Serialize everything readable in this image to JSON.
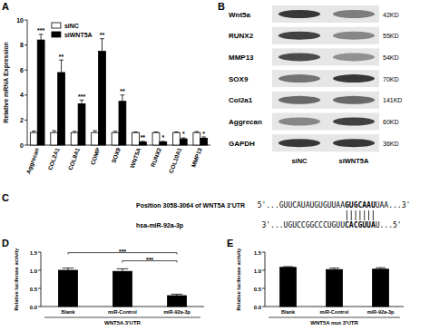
{
  "chart_data": [
    {
      "panel": "A",
      "type": "bar",
      "y_label": "Relative mRNA  Expression",
      "categories": [
        "Aggrecan",
        "COL2A1",
        "COL9A1",
        "COMP",
        "SOX9",
        "WNT5A",
        "RUNX2",
        "COL10A1",
        "MMP13"
      ],
      "series": [
        {
          "name": "siNC",
          "color": "#ffffff",
          "values": [
            1,
            1,
            1,
            1,
            1,
            1,
            1,
            1,
            1
          ],
          "errors": [
            0.12,
            0.15,
            0.1,
            0.15,
            0.1,
            0.05,
            0.05,
            0.05,
            0.08
          ]
        },
        {
          "name": "siWNT5A",
          "color": "#000000",
          "values": [
            8.4,
            5.8,
            3.3,
            7.5,
            3.5,
            0.25,
            0.25,
            0.5,
            0.55
          ],
          "errors": [
            0.45,
            1.0,
            0.3,
            1.0,
            0.5,
            0.05,
            0.05,
            0.08,
            0.1
          ],
          "annotations": [
            "***",
            "**",
            "***",
            "**",
            "**",
            "**",
            "*",
            "*",
            "*"
          ]
        }
      ],
      "ylim": [
        0,
        10
      ],
      "yticks": [
        0,
        2,
        4,
        6,
        8,
        10
      ],
      "legend": "upper left"
    },
    {
      "panel": "D",
      "type": "bar",
      "x_label": "WNT5A 3'UTR",
      "y_label": "Relative luciferase activity",
      "categories": [
        "Blank",
        "miR-Control",
        "miR-92a-3p"
      ],
      "values": [
        1.0,
        0.97,
        0.3
      ],
      "errors": [
        0.06,
        0.07,
        0.04
      ],
      "color": "#000000",
      "ylim": [
        0,
        1.5
      ],
      "yticks": [
        {
          "value": 0,
          "label": "0.0"
        },
        0.5,
        {
          "value": 1,
          "label": "1.0"
        },
        1.5
      ],
      "brackets": [
        {
          "text": "***",
          "from": 1,
          "to": 2
        },
        {
          "text": "***",
          "from": 0,
          "to": 2
        }
      ]
    },
    {
      "panel": "E",
      "type": "bar",
      "x_label": "WNT5A mut 3'UTR",
      "y_label": "Relative luciferase activity",
      "categories": [
        "Blank",
        "miR-Control",
        "miR-92a-3p"
      ],
      "values": [
        1.08,
        1.02,
        1.03
      ],
      "errors": [
        0.02,
        0.04,
        0.04
      ],
      "color": "#000000",
      "ylim": [
        0,
        1.5
      ],
      "yticks": [
        {
          "value": 0,
          "label": "0.0"
        },
        0.5,
        {
          "value": 1,
          "label": "1.0"
        },
        1.5
      ]
    }
  ],
  "blot": {
    "panel": "B",
    "lanes": [
      "siNC",
      "siWNT5A"
    ],
    "rows": [
      {
        "label": "Wnt5a",
        "size": "42KD",
        "intensity": [
          0.85,
          0.5
        ]
      },
      {
        "label": "RUNX2",
        "size": "55KD",
        "intensity": [
          0.8,
          0.45
        ]
      },
      {
        "label": "MMP13",
        "size": "54KD",
        "intensity": [
          0.75,
          0.4
        ]
      },
      {
        "label": "SOX9",
        "size": "70KD",
        "intensity": [
          0.55,
          0.85
        ]
      },
      {
        "label": "Col2a1",
        "size": "141KD",
        "intensity": [
          0.6,
          0.6
        ]
      },
      {
        "label": "Aggrecan",
        "size": "60KD",
        "intensity": [
          0.45,
          0.8
        ]
      },
      {
        "label": "GAPDH",
        "size": "36KD",
        "intensity": [
          0.85,
          0.85
        ]
      }
    ]
  },
  "alignment": {
    "panel": "C",
    "target": {
      "label": "Position 3058-3064 of WNT5A 3'UTR",
      "prefix": "5'...GUUCAUAUGUGUUAA",
      "seed": "GUGCAAU",
      "suffix": "UAA...3'"
    },
    "mirna": {
      "label": "hsa-miR-92a-3p",
      "prefix": "3'...UGUCCGGCCCUGUU",
      "seed": "CACGUUA",
      "suffix": "U...5'"
    }
  }
}
